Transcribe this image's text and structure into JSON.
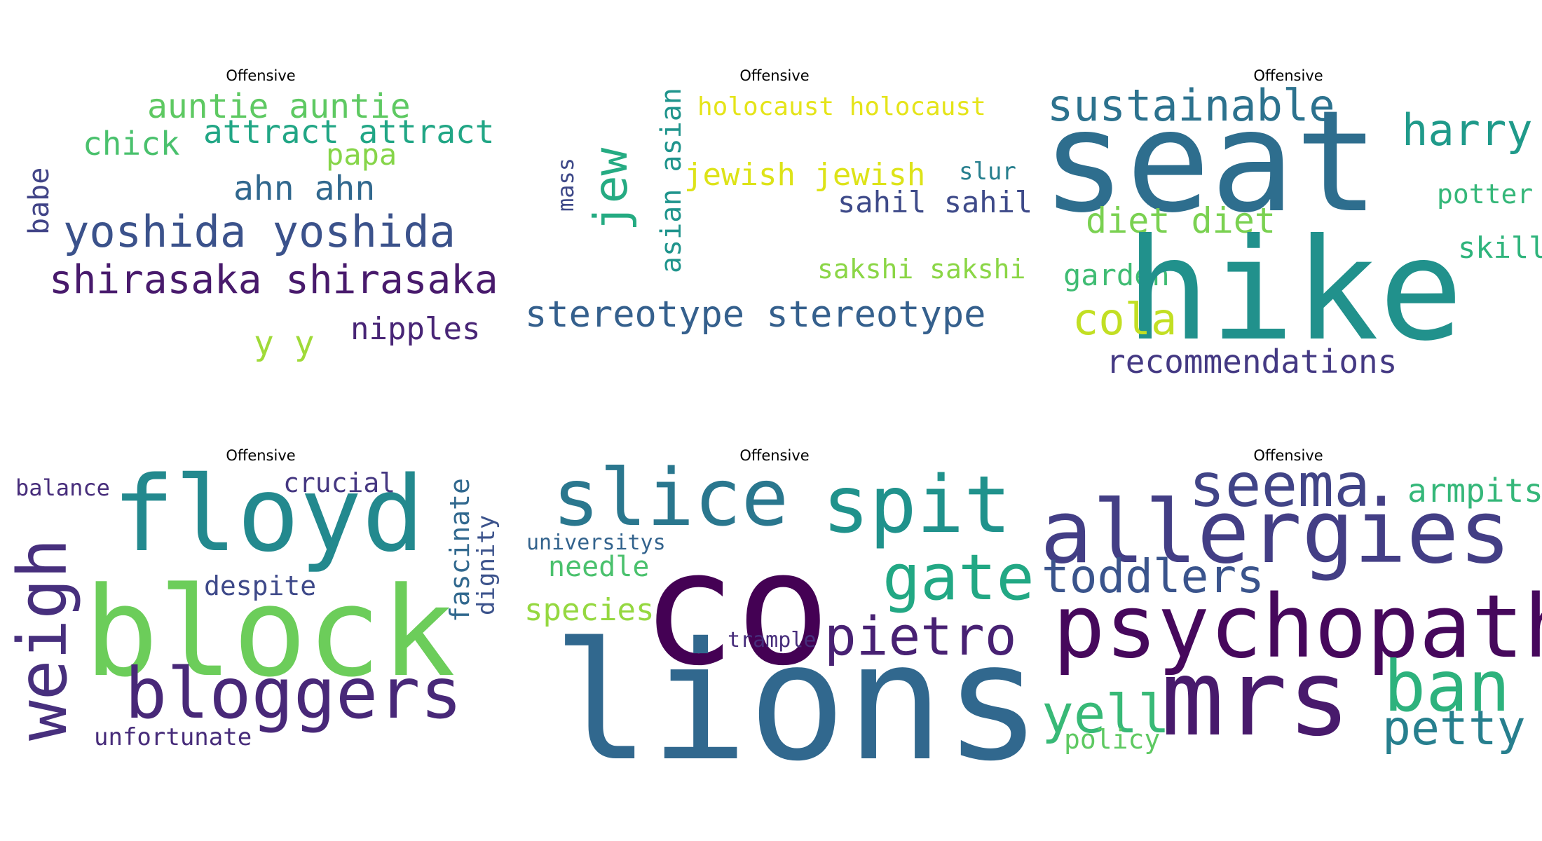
{
  "chart_data": [
    {
      "type": "wordcloud",
      "title": "Offensive",
      "words": [
        {
          "text": "auntie auntie",
          "color": "#5ec962"
        },
        {
          "text": "chick",
          "color": "#4ac16d"
        },
        {
          "text": "attract attract",
          "color": "#21a685"
        },
        {
          "text": "papa",
          "color": "#86d549"
        },
        {
          "text": "babe",
          "color": "#414487"
        },
        {
          "text": "ahn ahn",
          "color": "#31688e"
        },
        {
          "text": "yoshida yoshida",
          "color": "#3b528b"
        },
        {
          "text": "shirasaka shirasaka",
          "color": "#481a6c"
        },
        {
          "text": "y y",
          "color": "#a0da39"
        },
        {
          "text": "nipples",
          "color": "#482576"
        }
      ]
    },
    {
      "type": "wordcloud",
      "title": "Offensive",
      "words": [
        {
          "text": "holocaust holocaust",
          "color": "#e5e419"
        },
        {
          "text": "mass",
          "color": "#3e4989"
        },
        {
          "text": "jew",
          "color": "#25ab82"
        },
        {
          "text": "asian asian",
          "color": "#1f948c"
        },
        {
          "text": "jewish jewish",
          "color": "#dde318"
        },
        {
          "text": "slur",
          "color": "#277f8e"
        },
        {
          "text": "sahil sahil",
          "color": "#3e4a89"
        },
        {
          "text": "sakshi sakshi",
          "color": "#8bd646"
        },
        {
          "text": "stereotype stereotype",
          "color": "#35608d"
        }
      ]
    },
    {
      "type": "wordcloud",
      "title": "Offensive",
      "words": [
        {
          "text": "sustainable",
          "color": "#2c728e"
        },
        {
          "text": "seat",
          "color": "#2e6e8e"
        },
        {
          "text": "harry",
          "color": "#1f9a8a"
        },
        {
          "text": "potter",
          "color": "#35b779"
        },
        {
          "text": "diet diet",
          "color": "#7ad151"
        },
        {
          "text": "garden",
          "color": "#3fbc73"
        },
        {
          "text": "hike",
          "color": "#21918c"
        },
        {
          "text": "skill",
          "color": "#2fb47c"
        },
        {
          "text": "cola",
          "color": "#c2df23"
        },
        {
          "text": "recommendations",
          "color": "#443983"
        }
      ]
    },
    {
      "type": "wordcloud",
      "title": "Offensive",
      "words": [
        {
          "text": "balance",
          "color": "#472d7b"
        },
        {
          "text": "floyd",
          "color": "#23898e"
        },
        {
          "text": "crucial",
          "color": "#453781"
        },
        {
          "text": "fascinate",
          "color": "#31688e"
        },
        {
          "text": "dignity",
          "color": "#3b528b"
        },
        {
          "text": "weigh",
          "color": "#472f7d"
        },
        {
          "text": "despite",
          "color": "#3e4989"
        },
        {
          "text": "block",
          "color": "#6ccd5a"
        },
        {
          "text": "bloggers",
          "color": "#482878"
        },
        {
          "text": "unfortunate",
          "color": "#472c7a"
        }
      ]
    },
    {
      "type": "wordcloud",
      "title": "Offensive",
      "words": [
        {
          "text": "slice",
          "color": "#2a778e"
        },
        {
          "text": "spit",
          "color": "#20928c"
        },
        {
          "text": "universitys",
          "color": "#33638d"
        },
        {
          "text": "co",
          "color": "#440154"
        },
        {
          "text": "needle",
          "color": "#4ac16d"
        },
        {
          "text": "gate",
          "color": "#22a884"
        },
        {
          "text": "species",
          "color": "#95d840"
        },
        {
          "text": "pietro",
          "color": "#482173"
        },
        {
          "text": "trample",
          "color": "#472d7b"
        },
        {
          "text": "lions",
          "color": "#31688e"
        }
      ]
    },
    {
      "type": "wordcloud",
      "title": "Offensive",
      "words": [
        {
          "text": "seema",
          "color": "#414487"
        },
        {
          "text": "armpits",
          "color": "#35b779"
        },
        {
          "text": "allergies",
          "color": "#433e85"
        },
        {
          "text": "toddlers",
          "color": "#3a548c"
        },
        {
          "text": "psychopath",
          "color": "#46085c"
        },
        {
          "text": "mrs",
          "color": "#481a6c"
        },
        {
          "text": "ban",
          "color": "#2db27d"
        },
        {
          "text": "yell",
          "color": "#38b977"
        },
        {
          "text": "policy",
          "color": "#5ec962"
        },
        {
          "text": "petty",
          "color": "#277f8e"
        }
      ]
    }
  ]
}
